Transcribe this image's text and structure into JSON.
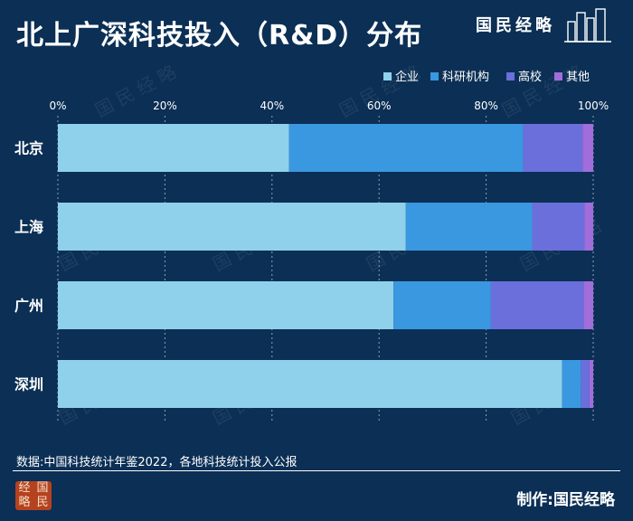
{
  "title": "北上广深科技投入（R&D）分布",
  "brand": {
    "name": "国民经略"
  },
  "colors": {
    "background": "#0b2f55",
    "企业": "#8fd1ea",
    "科研机构": "#3a98e0",
    "高校": "#6b6fdb",
    "其他": "#a06ddb"
  },
  "chart_data": {
    "type": "bar",
    "orientation": "horizontal",
    "stacked": true,
    "categories": [
      "北京",
      "上海",
      "广州",
      "深圳"
    ],
    "series": [
      {
        "name": "企业",
        "values": [
          43.2,
          65.0,
          62.7,
          94.2
        ]
      },
      {
        "name": "科研机构",
        "values": [
          43.7,
          23.6,
          18.2,
          3.5
        ]
      },
      {
        "name": "高校",
        "values": [
          11.1,
          9.8,
          17.3,
          1.6
        ]
      },
      {
        "name": "其他",
        "values": [
          2.0,
          1.6,
          1.8,
          0.7
        ]
      }
    ],
    "x_ticks": [
      "0%",
      "20%",
      "40%",
      "60%",
      "80%",
      "100%"
    ],
    "xlim": [
      0,
      100
    ],
    "grid": true,
    "legend_position": "top-right"
  },
  "footer": {
    "source": "数据:中国科技统计年鉴2022，各地科技统计投入公报",
    "maker": "制作:国民经略",
    "seal": [
      "经",
      "国",
      "略",
      "民"
    ]
  }
}
